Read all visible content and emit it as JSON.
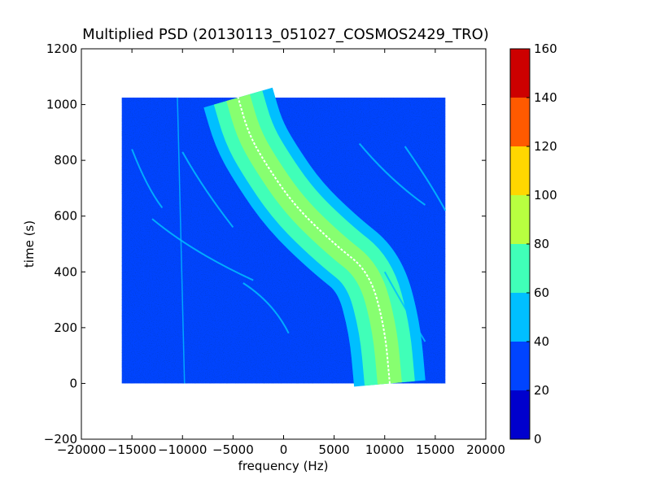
{
  "chart_data": {
    "type": "heatmap",
    "title": "Multiplied PSD (20130113_051027_COSMOS2429_TRO)",
    "xlabel": "frequency (Hz)",
    "ylabel": "time (s)",
    "xlim": [
      -20000,
      20000
    ],
    "ylim": [
      -200,
      1200
    ],
    "x_ticks": [
      -20000,
      -15000,
      -10000,
      -5000,
      0,
      5000,
      10000,
      15000,
      20000
    ],
    "x_tick_labels": [
      "−20000",
      "−15000",
      "−10000",
      "−5000",
      "0",
      "5000",
      "10000",
      "15000",
      "20000"
    ],
    "y_ticks": [
      -200,
      0,
      200,
      400,
      600,
      800,
      1000,
      1200
    ],
    "y_tick_labels": [
      "−200",
      "0",
      "200",
      "400",
      "600",
      "800",
      "1000",
      "1200"
    ],
    "data_extent": {
      "x": [
        -16000,
        16000
      ],
      "y": [
        0,
        1025
      ]
    },
    "background_level": 25,
    "trace": {
      "description": "main Doppler S-curve",
      "points": [
        [
          10500,
          0
        ],
        [
          10000,
          200
        ],
        [
          8500,
          400
        ],
        [
          5000,
          500
        ],
        [
          1000,
          640
        ],
        [
          -2000,
          800
        ],
        [
          -3500,
          900
        ],
        [
          -4500,
          1025
        ]
      ],
      "peak_level": 75
    },
    "colorbar": {
      "min": 0,
      "max": 160,
      "ticks": [
        0,
        20,
        40,
        60,
        80,
        100,
        120,
        140,
        160
      ],
      "tick_labels": [
        "0",
        "20",
        "40",
        "60",
        "80",
        "100",
        "120",
        "140",
        "160"
      ],
      "colors": [
        "#0000cd",
        "#0044ff",
        "#00bfff",
        "#40ffb8",
        "#b8ff40",
        "#ffd700",
        "#ff5a00",
        "#cd0000"
      ]
    },
    "grid": false
  }
}
